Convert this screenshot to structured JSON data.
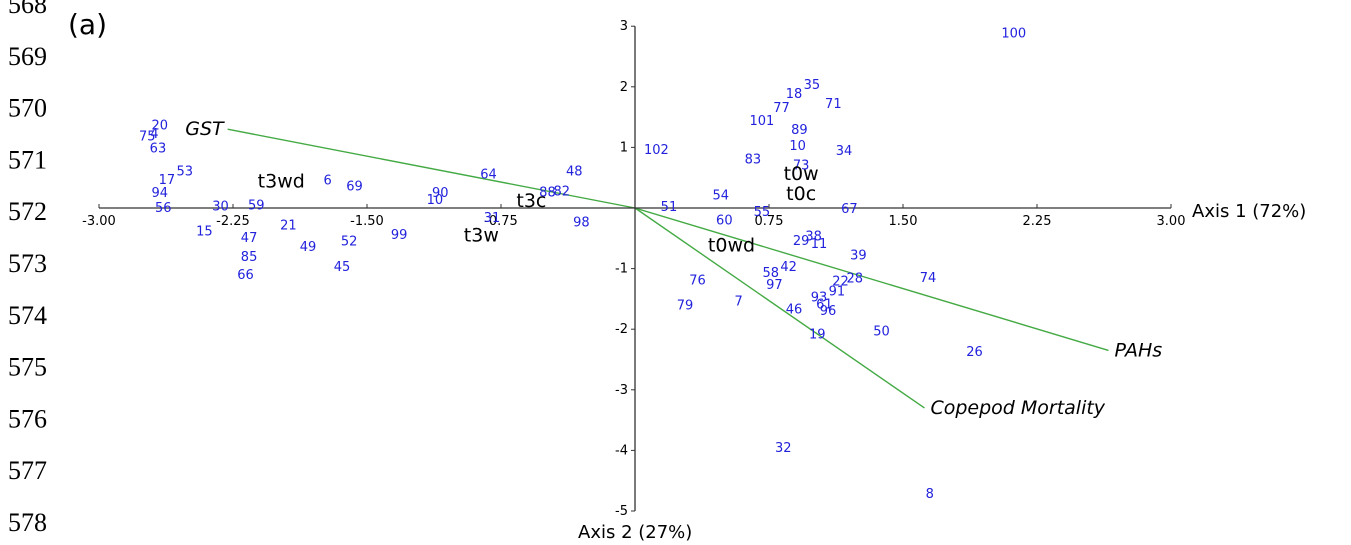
{
  "line_numbers": [
    "568",
    "569",
    "570",
    "571",
    "572",
    "573",
    "574",
    "575",
    "576",
    "577",
    "578"
  ],
  "panel_label": "(a)",
  "colors": {
    "points": "#2222dd",
    "vectors": "#44aa44",
    "axes": "#333333",
    "text": "#000000"
  },
  "chart_data": {
    "type": "scatter",
    "title": "",
    "xlabel": "Axis 1 (72%)",
    "ylabel": "Axis 2 (27%)",
    "xlim": [
      -3.0,
      3.0
    ],
    "ylim": [
      -5,
      3
    ],
    "x_ticks": [
      "-3.00",
      "-2.25",
      "-1.50",
      "-0.75",
      "0.75",
      "1.50",
      "2.25",
      "3.00"
    ],
    "y_ticks": [
      "3",
      "2",
      "1",
      "-1",
      "-2",
      "-3",
      "-4",
      "-5"
    ],
    "grid": false,
    "points": [
      {
        "label": "100",
        "x": 2.12,
        "y": 2.9
      },
      {
        "label": "35",
        "x": 0.99,
        "y": 2.05
      },
      {
        "label": "18",
        "x": 0.89,
        "y": 1.9
      },
      {
        "label": "71",
        "x": 1.11,
        "y": 1.73
      },
      {
        "label": "77",
        "x": 0.82,
        "y": 1.67
      },
      {
        "label": "101",
        "x": 0.71,
        "y": 1.45
      },
      {
        "label": "89",
        "x": 0.92,
        "y": 1.3
      },
      {
        "label": "10",
        "x": 0.91,
        "y": 1.04
      },
      {
        "label": "34",
        "x": 1.17,
        "y": 0.96
      },
      {
        "label": "102",
        "x": 0.12,
        "y": 0.97
      },
      {
        "label": "83",
        "x": 0.66,
        "y": 0.82
      },
      {
        "label": "73",
        "x": 0.93,
        "y": 0.72
      },
      {
        "label": "64",
        "x": -0.82,
        "y": 0.57
      },
      {
        "label": "48",
        "x": -0.34,
        "y": 0.62
      },
      {
        "label": "88",
        "x": -0.49,
        "y": 0.27
      },
      {
        "label": "82",
        "x": -0.41,
        "y": 0.29
      },
      {
        "label": "90",
        "x": -1.09,
        "y": 0.26
      },
      {
        "label": "10",
        "x": -1.12,
        "y": 0.15
      },
      {
        "label": "51",
        "x": 0.19,
        "y": 0.03
      },
      {
        "label": "54",
        "x": 0.48,
        "y": 0.22
      },
      {
        "label": "55",
        "x": 0.71,
        "y": -0.05
      },
      {
        "label": "60",
        "x": 0.5,
        "y": -0.19
      },
      {
        "label": "67",
        "x": 1.2,
        "y": 0.0
      },
      {
        "label": "98",
        "x": -0.3,
        "y": -0.22
      },
      {
        "label": "31",
        "x": -0.8,
        "y": -0.15
      },
      {
        "label": "6",
        "x": -1.72,
        "y": 0.47
      },
      {
        "label": "69",
        "x": -1.57,
        "y": 0.37
      },
      {
        "label": "20",
        "x": -2.66,
        "y": 1.38
      },
      {
        "label": "75",
        "x": -2.73,
        "y": 1.2
      },
      {
        "label": "4",
        "x": -2.69,
        "y": 1.24
      },
      {
        "label": "63",
        "x": -2.67,
        "y": 1.0
      },
      {
        "label": "53",
        "x": -2.52,
        "y": 0.62
      },
      {
        "label": "17",
        "x": -2.62,
        "y": 0.48
      },
      {
        "label": "94",
        "x": -2.66,
        "y": 0.26
      },
      {
        "label": "56",
        "x": -2.64,
        "y": 0.02
      },
      {
        "label": "30",
        "x": -2.32,
        "y": 0.04
      },
      {
        "label": "59",
        "x": -2.12,
        "y": 0.06
      },
      {
        "label": "15",
        "x": -2.41,
        "y": -0.37
      },
      {
        "label": "47",
        "x": -2.16,
        "y": -0.48
      },
      {
        "label": "21",
        "x": -1.94,
        "y": -0.27
      },
      {
        "label": "49",
        "x": -1.83,
        "y": -0.63
      },
      {
        "label": "52",
        "x": -1.6,
        "y": -0.54
      },
      {
        "label": "99",
        "x": -1.32,
        "y": -0.43
      },
      {
        "label": "85",
        "x": -2.16,
        "y": -0.79
      },
      {
        "label": "45",
        "x": -1.64,
        "y": -0.96
      },
      {
        "label": "66",
        "x": -2.18,
        "y": -1.09
      },
      {
        "label": "38",
        "x": 1.0,
        "y": -0.45
      },
      {
        "label": "29",
        "x": 0.93,
        "y": -0.53
      },
      {
        "label": "11",
        "x": 1.03,
        "y": -0.58
      },
      {
        "label": "39",
        "x": 1.25,
        "y": -0.77
      },
      {
        "label": "42",
        "x": 0.86,
        "y": -0.96
      },
      {
        "label": "58",
        "x": 0.76,
        "y": -1.06
      },
      {
        "label": "97",
        "x": 0.78,
        "y": -1.25
      },
      {
        "label": "22",
        "x": 1.15,
        "y": -1.2
      },
      {
        "label": "28",
        "x": 1.23,
        "y": -1.15
      },
      {
        "label": "74",
        "x": 1.64,
        "y": -1.14
      },
      {
        "label": "91",
        "x": 1.13,
        "y": -1.36
      },
      {
        "label": "93",
        "x": 1.03,
        "y": -1.46
      },
      {
        "label": "61",
        "x": 1.06,
        "y": -1.58
      },
      {
        "label": "96",
        "x": 1.08,
        "y": -1.68
      },
      {
        "label": "46",
        "x": 0.89,
        "y": -1.66
      },
      {
        "label": "76",
        "x": 0.35,
        "y": -1.18
      },
      {
        "label": "7",
        "x": 0.58,
        "y": -1.53
      },
      {
        "label": "79",
        "x": 0.28,
        "y": -1.59
      },
      {
        "label": "19",
        "x": 1.02,
        "y": -2.07
      },
      {
        "label": "50",
        "x": 1.38,
        "y": -2.02
      },
      {
        "label": "26",
        "x": 1.9,
        "y": -2.36
      },
      {
        "label": "32",
        "x": 0.83,
        "y": -3.94
      },
      {
        "label": "8",
        "x": 1.65,
        "y": -4.7
      }
    ],
    "groups": [
      {
        "label": "t3wd",
        "x": -1.98,
        "y": 0.45
      },
      {
        "label": "t3c",
        "x": -0.58,
        "y": 0.13
      },
      {
        "label": "t3w",
        "x": -0.86,
        "y": -0.44
      },
      {
        "label": "t0w",
        "x": 0.93,
        "y": 0.58
      },
      {
        "label": "t0c",
        "x": 0.93,
        "y": 0.25
      },
      {
        "label": "t0wd",
        "x": 0.54,
        "y": -0.6
      }
    ],
    "vectors": [
      {
        "label": "GST",
        "x": -2.28,
        "y": 1.3
      },
      {
        "label": "PAHs",
        "x": 2.65,
        "y": -2.35
      },
      {
        "label": "Copepod Mortality",
        "x": 1.62,
        "y": -3.3
      }
    ]
  }
}
